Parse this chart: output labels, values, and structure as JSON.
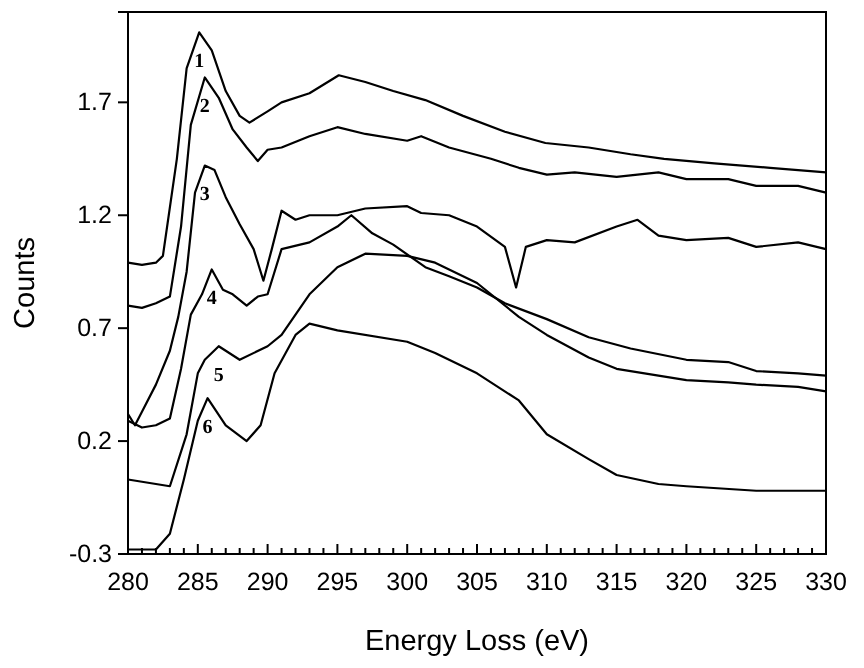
{
  "chart_data": {
    "type": "line",
    "xlabel": "Energy Loss (eV)",
    "ylabel": "Counts",
    "xlim": [
      280,
      330
    ],
    "ylim": [
      -0.3,
      2.1
    ],
    "xticks": [
      280,
      {
        "value": 281,
        "label": null
      },
      {
        "value": 282,
        "label": null
      },
      {
        "value": 283,
        "label": null
      },
      {
        "value": 284,
        "label": null
      },
      285,
      {
        "value": 286,
        "label": null
      },
      {
        "value": 287,
        "label": null
      },
      {
        "value": 288,
        "label": null
      },
      {
        "value": 289,
        "label": null
      },
      290,
      {
        "value": 291,
        "label": null
      },
      {
        "value": 292,
        "label": null
      },
      {
        "value": 293,
        "label": null
      },
      {
        "value": 294,
        "label": null
      },
      295,
      {
        "value": 296,
        "label": null
      },
      {
        "value": 297,
        "label": null
      },
      {
        "value": 298,
        "label": null
      },
      {
        "value": 299,
        "label": null
      },
      300,
      {
        "value": 301,
        "label": null
      },
      {
        "value": 302,
        "label": null
      },
      {
        "value": 303,
        "label": null
      },
      {
        "value": 304,
        "label": null
      },
      305,
      {
        "value": 306,
        "label": null
      },
      {
        "value": 307,
        "label": null
      },
      {
        "value": 308,
        "label": null
      },
      {
        "value": 309,
        "label": null
      },
      310,
      {
        "value": 311,
        "label": null
      },
      {
        "value": 312,
        "label": null
      },
      {
        "value": 313,
        "label": null
      },
      {
        "value": 314,
        "label": null
      },
      315,
      {
        "value": 316,
        "label": null
      },
      {
        "value": 317,
        "label": null
      },
      {
        "value": 318,
        "label": null
      },
      {
        "value": 319,
        "label": null
      },
      320,
      {
        "value": 321,
        "label": null
      },
      {
        "value": 322,
        "label": null
      },
      {
        "value": 323,
        "label": null
      },
      {
        "value": 324,
        "label": null
      },
      325,
      {
        "value": 326,
        "label": null
      },
      {
        "value": 327,
        "label": null
      },
      {
        "value": 328,
        "label": null
      },
      {
        "value": 329,
        "label": null
      },
      330
    ],
    "yticks": [
      -0.3,
      0.2,
      0.7,
      1.2,
      1.7
    ],
    "grid": false,
    "marker": "none",
    "line_style": "solid",
    "series": [
      {
        "color": "#000000",
        "x": [
          280,
          281,
          282,
          282.5,
          283.5,
          284.2,
          285.1,
          286,
          287,
          288,
          288.7,
          290,
          291,
          293,
          295.1,
          297,
          299,
          301.3,
          304,
          307,
          309.9,
          313,
          316,
          318.4,
          322,
          326,
          330
        ],
        "values": [
          0.99,
          0.98,
          0.99,
          1.02,
          1.45,
          1.85,
          2.01,
          1.93,
          1.75,
          1.64,
          1.61,
          1.66,
          1.7,
          1.74,
          1.82,
          1.79,
          1.75,
          1.71,
          1.64,
          1.57,
          1.52,
          1.5,
          1.47,
          1.45,
          1.43,
          1.41,
          1.39
        ]
      },
      {
        "color": "#000000",
        "x": [
          280,
          281,
          282,
          283,
          283.8,
          284.5,
          285.5,
          286.5,
          287.5,
          288.5,
          289.3,
          290,
          291,
          293,
          295,
          297,
          300,
          301,
          303,
          306,
          308,
          310,
          312,
          315,
          318,
          320,
          323,
          325,
          328,
          330
        ],
        "values": [
          0.8,
          0.79,
          0.81,
          0.84,
          1.15,
          1.6,
          1.81,
          1.72,
          1.58,
          1.5,
          1.44,
          1.49,
          1.5,
          1.55,
          1.59,
          1.56,
          1.53,
          1.55,
          1.5,
          1.45,
          1.41,
          1.38,
          1.39,
          1.37,
          1.39,
          1.36,
          1.36,
          1.33,
          1.33,
          1.3
        ]
      },
      {
        "color": "#000000",
        "x": [
          280,
          280.5,
          281,
          282,
          283,
          283.6,
          284.2,
          284.8,
          285.5,
          286.2,
          287,
          288,
          289,
          289.7,
          290.3,
          291,
          292,
          293,
          295,
          297,
          300,
          301,
          303,
          305,
          307,
          307.8,
          308.5,
          310,
          312,
          315,
          316.5,
          318,
          320,
          323,
          325,
          328,
          330
        ],
        "values": [
          0.32,
          0.27,
          0.33,
          0.45,
          0.6,
          0.75,
          0.95,
          1.3,
          1.42,
          1.4,
          1.28,
          1.16,
          1.05,
          0.91,
          1.05,
          1.22,
          1.18,
          1.2,
          1.2,
          1.23,
          1.24,
          1.21,
          1.2,
          1.15,
          1.06,
          0.88,
          1.06,
          1.09,
          1.08,
          1.15,
          1.18,
          1.11,
          1.09,
          1.1,
          1.06,
          1.08,
          1.05
        ]
      },
      {
        "color": "#000000",
        "x": [
          280,
          281,
          282,
          283,
          283.8,
          284.5,
          285.3,
          286,
          286.8,
          287.5,
          288.5,
          289.3,
          290,
          291,
          293,
          295,
          296,
          297.5,
          299,
          301.3,
          303,
          305,
          307,
          310,
          313,
          316,
          320,
          323,
          325,
          328,
          330
        ],
        "values": [
          0.29,
          0.26,
          0.27,
          0.3,
          0.52,
          0.76,
          0.85,
          0.96,
          0.87,
          0.85,
          0.8,
          0.84,
          0.85,
          1.05,
          1.08,
          1.15,
          1.2,
          1.12,
          1.07,
          0.97,
          0.93,
          0.88,
          0.81,
          0.74,
          0.66,
          0.61,
          0.56,
          0.55,
          0.51,
          0.5,
          0.49
        ]
      },
      {
        "color": "#000000",
        "x": [
          280,
          281,
          282,
          283,
          284.2,
          285,
          285.5,
          286.5,
          288,
          290,
          291,
          293,
          295,
          297,
          300,
          302,
          305,
          308,
          310,
          313,
          315,
          318,
          320,
          323,
          325,
          328,
          330
        ],
        "values": [
          0.03,
          0.02,
          0.01,
          0.0,
          0.23,
          0.5,
          0.56,
          0.62,
          0.56,
          0.62,
          0.67,
          0.85,
          0.97,
          1.03,
          1.02,
          0.99,
          0.9,
          0.75,
          0.67,
          0.57,
          0.52,
          0.49,
          0.47,
          0.46,
          0.45,
          0.44,
          0.42
        ]
      },
      {
        "color": "#000000",
        "x": [
          280,
          282,
          283,
          284,
          285,
          285.7,
          287,
          288.5,
          289.5,
          290.5,
          292,
          293,
          295,
          300,
          302,
          305,
          308,
          310,
          313,
          315,
          318,
          320,
          325,
          330
        ],
        "values": [
          -0.28,
          -0.28,
          -0.21,
          0.03,
          0.29,
          0.39,
          0.27,
          0.2,
          0.27,
          0.5,
          0.67,
          0.72,
          0.69,
          0.64,
          0.59,
          0.5,
          0.38,
          0.23,
          0.12,
          0.05,
          0.01,
          0.0,
          -0.02,
          -0.02
        ]
      }
    ],
    "annotations": [
      {
        "text": "1",
        "x": 285.1,
        "y": 2.01
      },
      {
        "text": "2",
        "x": 285.5,
        "y": 1.81
      },
      {
        "text": "3",
        "x": 285.5,
        "y": 1.42
      },
      {
        "text": "4",
        "x": 286,
        "y": 0.96
      },
      {
        "text": "5",
        "x": 286.5,
        "y": 0.62
      },
      {
        "text": "6",
        "x": 285.7,
        "y": 0.39
      }
    ]
  }
}
